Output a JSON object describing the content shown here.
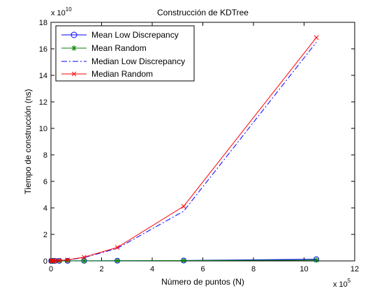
{
  "chart_data": {
    "type": "line",
    "title": "Construcción de KDTree",
    "xlabel": "Número de puntos (N)",
    "ylabel": "Tiempo de construcción (ns)",
    "x_multiplier_text": "x 10",
    "x_multiplier_exp": "5",
    "y_multiplier_text": "x 10",
    "y_multiplier_exp": "10",
    "x_scale_factor": 100000,
    "y_scale_factor": 10000000000,
    "xlim": [
      0,
      12
    ],
    "ylim": [
      0,
      18
    ],
    "xticks": [
      0,
      2,
      4,
      6,
      8,
      10,
      12
    ],
    "yticks": [
      0,
      2,
      4,
      6,
      8,
      10,
      12,
      14,
      16,
      18
    ],
    "grid": false,
    "legend_position": "top-left",
    "x": [
      0.01024,
      0.02048,
      0.04096,
      0.08192,
      0.16384,
      0.32768,
      0.65536,
      1.31072,
      2.62144,
      5.24288,
      10.48576
    ],
    "series": [
      {
        "name": "Mean Low Discrepancy",
        "color": "#0000ff",
        "line_style": "solid",
        "marker": "circle",
        "values": [
          0.0001,
          0.0002,
          0.0003,
          0.0005,
          0.001,
          0.002,
          0.004,
          0.008,
          0.015,
          0.03,
          0.13
        ]
      },
      {
        "name": "Mean Random",
        "color": "#008000",
        "line_style": "solid",
        "marker": "star",
        "values": [
          0.0001,
          0.0002,
          0.0003,
          0.0005,
          0.001,
          0.002,
          0.004,
          0.008,
          0.015,
          0.025,
          0.06
        ]
      },
      {
        "name": "Median Low Discrepancy",
        "color": "#0000ff",
        "line_style": "dashdot",
        "marker": "none",
        "values": [
          0.0005,
          0.001,
          0.002,
          0.005,
          0.012,
          0.03,
          0.07,
          0.25,
          0.95,
          3.75,
          16.5
        ]
      },
      {
        "name": "Median Random",
        "color": "#ff0000",
        "line_style": "solid",
        "marker": "x",
        "values": [
          0.0005,
          0.001,
          0.002,
          0.005,
          0.015,
          0.035,
          0.08,
          0.28,
          1.02,
          4.12,
          16.85
        ]
      }
    ]
  }
}
